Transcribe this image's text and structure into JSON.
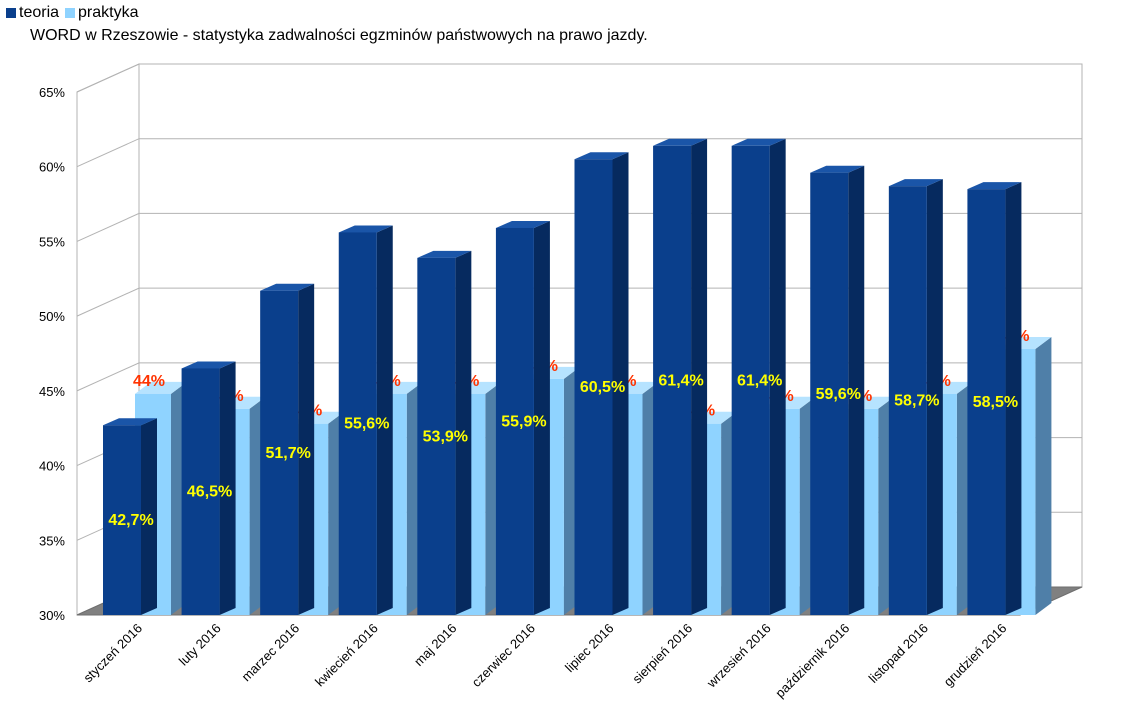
{
  "legend": [
    {
      "label": "teoria",
      "color": "#0a3f8c"
    },
    {
      "label": "praktyka",
      "color": "#8fd3ff"
    }
  ],
  "chart_data": {
    "type": "bar",
    "title": "WORD w Rzeszowie - statystyka zadwalności egzminów państwowych na prawo jazdy.",
    "categories": [
      "styczeń 2016",
      "luty 2016",
      "marzec 2016",
      "kwiecień 2016",
      "maj 2016",
      "czerwiec 2016",
      "lipiec 2016",
      "sierpień 2016",
      "wrzesień 2016",
      "październik 2016",
      "listopad 2016",
      "grudzień 2016"
    ],
    "series": [
      {
        "name": "teoria",
        "color": "#0a3f8c",
        "values": [
          42.7,
          46.5,
          51.7,
          55.6,
          53.9,
          55.9,
          60.5,
          61.4,
          61.4,
          59.6,
          58.7,
          58.5
        ],
        "labels": [
          "42,7%",
          "46,5%",
          "51,7%",
          "55,6%",
          "53,9%",
          "55,9%",
          "60,5%",
          "61,4%",
          "61,4%",
          "59,6%",
          "58,7%",
          "58,5%"
        ]
      },
      {
        "name": "praktyka",
        "color": "#8fd3ff",
        "values": [
          44,
          43,
          42,
          44,
          44,
          45,
          44,
          42,
          43,
          43,
          44,
          47
        ],
        "labels": [
          "44%",
          "43%",
          "42%",
          "44%",
          "44%",
          "45%",
          "44%",
          "42%",
          "43%",
          "43%",
          "44%",
          "47%"
        ]
      }
    ],
    "ylim": [
      30,
      65
    ],
    "yticks": [
      "30%",
      "35%",
      "40%",
      "45%",
      "50%",
      "55%",
      "60%",
      "65%"
    ],
    "grid": true,
    "legend_position": "top-left",
    "style": "3d"
  }
}
